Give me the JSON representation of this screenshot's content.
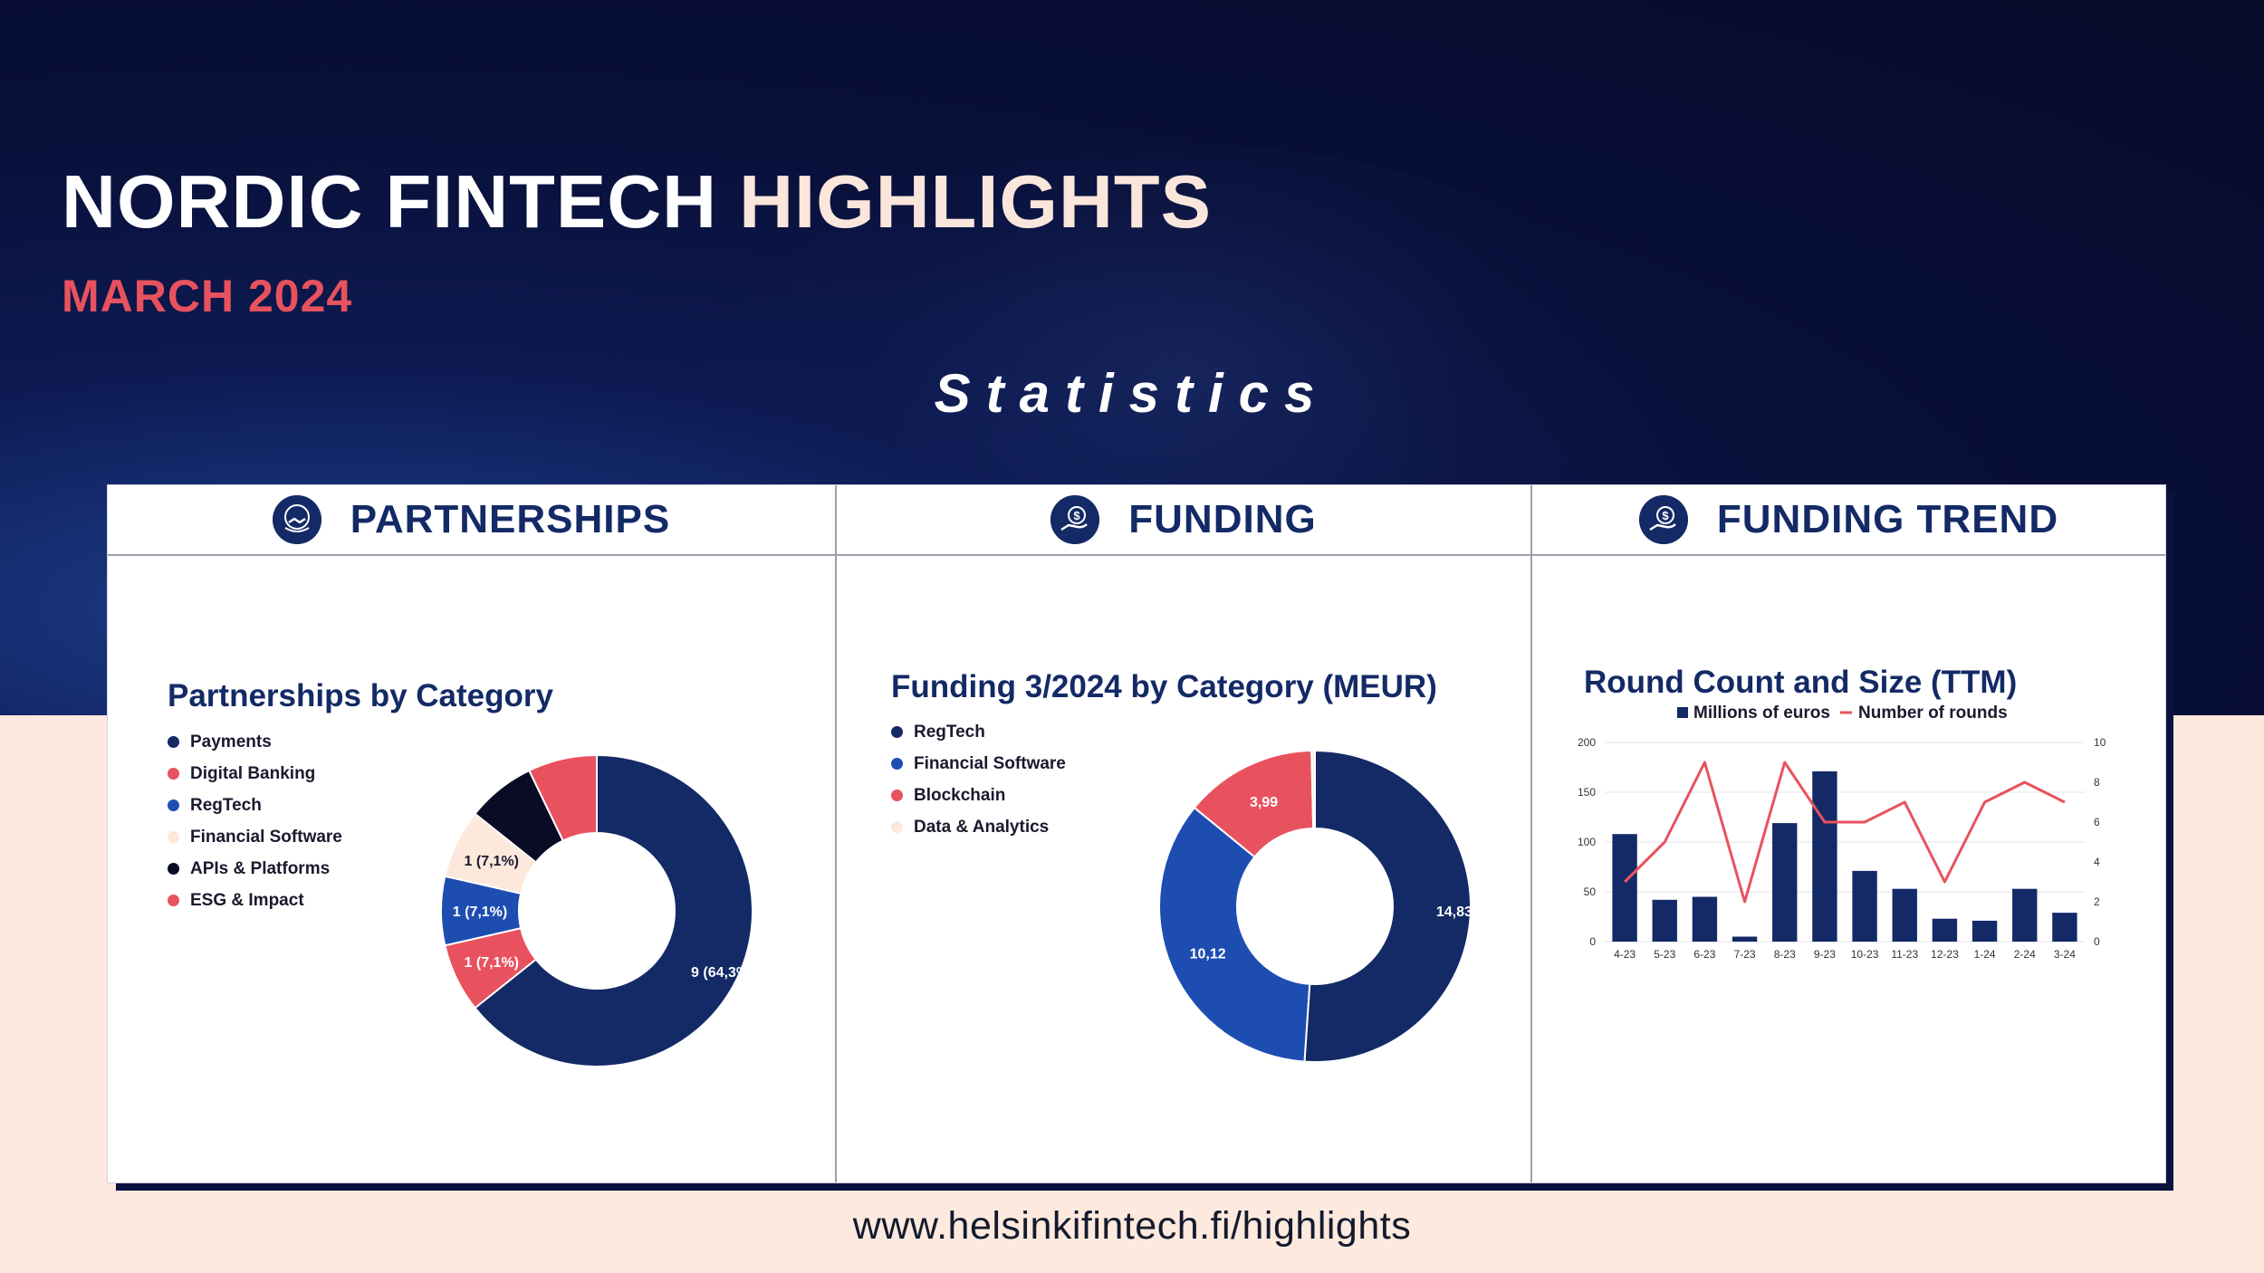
{
  "header": {
    "title_main": "NORDIC FINTECH ",
    "title_highlight": "HIGHLIGHTS",
    "subtitle": "MARCH 2024",
    "section": "Statistics"
  },
  "panels": {
    "partnerships": {
      "title": "PARTNERSHIPS",
      "icon": "partnership-handshake-icon"
    },
    "funding": {
      "title": "FUNDING",
      "icon": "funding-hand-coin-icon"
    },
    "trend": {
      "title": "FUNDING TREND",
      "icon": "funding-hand-coin-icon"
    }
  },
  "footer": {
    "url": "www.helsinkifintech.fi/highlights"
  },
  "colors": {
    "navy": "#142a66",
    "blue": "#1e4db2",
    "red": "#e8525e",
    "cream": "#fce9dc",
    "black": "#0a0c26"
  },
  "chart_data": [
    {
      "type": "pie",
      "title": "Partnerships by Category",
      "legend": [
        {
          "name": "Payments",
          "color": "#142a66"
        },
        {
          "name": "Digital Banking",
          "color": "#e8525e"
        },
        {
          "name": "RegTech",
          "color": "#1e4db2"
        },
        {
          "name": "Financial Software",
          "color": "#fce9dc"
        },
        {
          "name": "APIs & Platforms",
          "color": "#0a0c26"
        },
        {
          "name": "ESG & Impact",
          "color": "#e8525e"
        }
      ],
      "slices": [
        {
          "name": "Payments",
          "value": 9,
          "label": "9 (64,3%)",
          "color": "#142a66"
        },
        {
          "name": "Digital Banking",
          "value": 1,
          "label": "1 (7,1%)",
          "color": "#e8525e"
        },
        {
          "name": "RegTech",
          "value": 1,
          "label": "1 (7,1%)",
          "color": "#1e4db2"
        },
        {
          "name": "Financial Software",
          "value": 1,
          "label": "1 (7,1%)",
          "color": "#fce9dc"
        },
        {
          "name": "APIs & Platforms",
          "value": 1,
          "label": "",
          "color": "#0a0c26"
        },
        {
          "name": "ESG & Impact",
          "value": 1,
          "label": "",
          "color": "#e8525e"
        }
      ]
    },
    {
      "type": "pie",
      "title": "Funding 3/2024 by Category (MEUR)",
      "legend": [
        {
          "name": "RegTech",
          "color": "#142a66"
        },
        {
          "name": "Financial Software",
          "color": "#1e4db2"
        },
        {
          "name": "Blockchain",
          "color": "#e8525e"
        },
        {
          "name": "Data & Analytics",
          "color": "#fce9dc"
        }
      ],
      "slices": [
        {
          "name": "RegTech",
          "value": 14.83,
          "label": "14,83",
          "color": "#142a66"
        },
        {
          "name": "Financial Software",
          "value": 10.12,
          "label": "10,12",
          "color": "#1e4db2"
        },
        {
          "name": "Blockchain",
          "value": 3.99,
          "label": "3,99",
          "color": "#e8525e"
        },
        {
          "name": "Data & Analytics",
          "value": 0.1,
          "label": "",
          "color": "#fce9dc"
        }
      ]
    },
    {
      "type": "bar",
      "title": "Round Count and Size (TTM)",
      "categories": [
        "4-23",
        "5-23",
        "6-23",
        "7-23",
        "8-23",
        "9-23",
        "10-23",
        "11-23",
        "12-23",
        "1-24",
        "2-24",
        "3-24"
      ],
      "series": [
        {
          "name": "Millions of euros",
          "type": "bar",
          "axis": "left",
          "color": "#142a66",
          "values": [
            108,
            42,
            45,
            5,
            119,
            171,
            71,
            53,
            23,
            21,
            53,
            29
          ]
        },
        {
          "name": "Number of rounds",
          "type": "line",
          "axis": "right",
          "color": "#e8525e",
          "values": [
            3,
            5,
            9,
            2,
            9,
            6,
            6,
            7,
            3,
            7,
            8,
            7
          ]
        }
      ],
      "ylim": [
        0,
        200
      ],
      "yticks": [
        0,
        50,
        100,
        150,
        200
      ],
      "y2lim": [
        0,
        10
      ],
      "y2ticks": [
        0,
        2,
        4,
        6,
        8,
        10
      ],
      "legend_position": "top",
      "grid": true
    }
  ]
}
